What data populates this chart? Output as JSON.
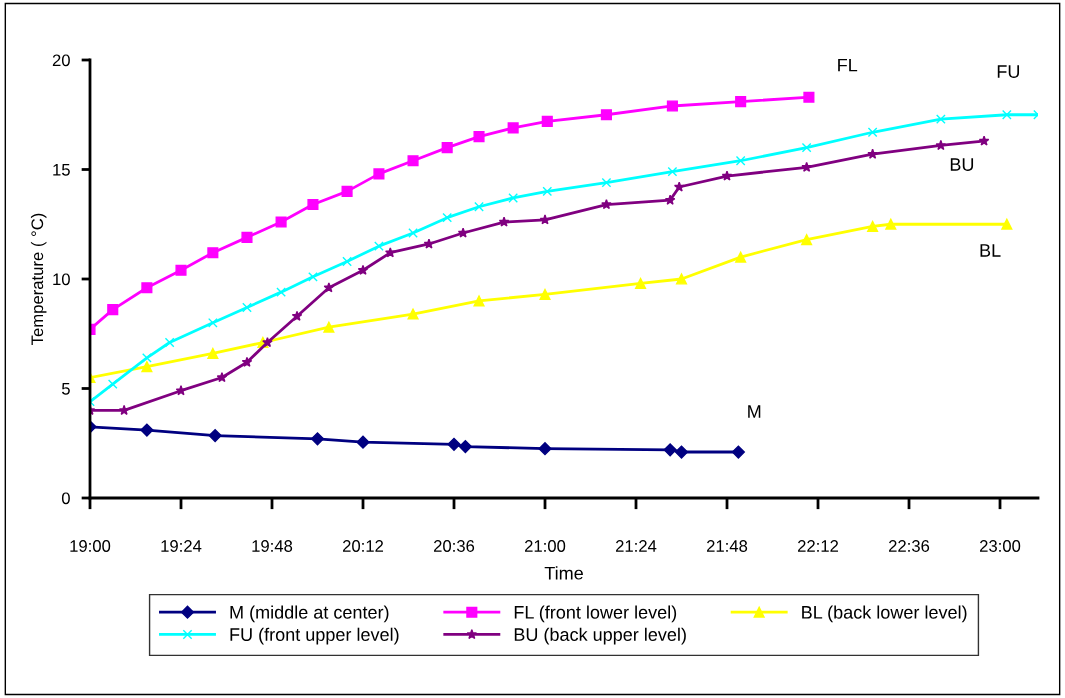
{
  "chart_data": {
    "type": "line",
    "xlabel": "Time",
    "ylabel": "Temperature ( °C)",
    "xlim": [
      19,
      23.167
    ],
    "xticks": [
      {
        "value": 19,
        "label": "19:00"
      },
      {
        "value": 19.4,
        "label": "19:24"
      },
      {
        "value": 19.8,
        "label": "19:48"
      },
      {
        "value": 20.2,
        "label": "20:12"
      },
      {
        "value": 20.6,
        "label": "20:36"
      },
      {
        "value": 21,
        "label": "21:00"
      },
      {
        "value": 21.4,
        "label": "21:24"
      },
      {
        "value": 21.8,
        "label": "21:48"
      },
      {
        "value": 22.2,
        "label": "22:12"
      },
      {
        "value": 22.6,
        "label": "22:36"
      },
      {
        "value": 23,
        "label": "23:00"
      }
    ],
    "ylim": [
      0,
      20
    ],
    "yticks": [
      0,
      5,
      10,
      15,
      20
    ],
    "grid": false,
    "legend": "bottom",
    "line_style": "solid",
    "series": [
      {
        "name": "M (middle at center)",
        "color": "#000080",
        "marker": "diamond",
        "x": [
          19.0,
          19.25,
          19.55,
          20.0,
          20.2,
          20.6,
          20.65,
          21.0,
          21.55,
          21.6,
          21.85
        ],
        "values": [
          3.25,
          3.1,
          2.85,
          2.7,
          2.55,
          2.45,
          2.35,
          2.25,
          2.2,
          2.1,
          2.1
        ]
      },
      {
        "name": "FL (front lower level)",
        "color": "#ff00ff",
        "marker": "square",
        "x": [
          19.0,
          19.1,
          19.25,
          19.4,
          19.54,
          19.69,
          19.84,
          19.98,
          20.13,
          20.27,
          20.42,
          20.57,
          20.71,
          20.86,
          21.01,
          21.27,
          21.56,
          21.86,
          22.16
        ],
        "values": [
          7.7,
          8.6,
          9.6,
          10.4,
          11.2,
          11.9,
          12.6,
          13.4,
          14.0,
          14.8,
          15.4,
          16.0,
          16.5,
          16.9,
          17.2,
          17.5,
          17.9,
          18.1,
          18.3
        ]
      },
      {
        "name": "BL (back lower level)",
        "color": "#ffff00",
        "marker": "triangle",
        "x": [
          19.0,
          19.25,
          19.54,
          19.76,
          20.05,
          20.42,
          20.71,
          21.0,
          21.42,
          21.6,
          21.86,
          22.15,
          22.44,
          22.52,
          23.03
        ],
        "values": [
          5.5,
          6.0,
          6.6,
          7.1,
          7.8,
          8.4,
          9.0,
          9.3,
          9.8,
          10.0,
          11.0,
          11.8,
          12.4,
          12.5,
          12.5
        ]
      },
      {
        "name": "FU (front upper level)",
        "color": "#00ffff",
        "marker": "cross",
        "x": [
          19.0,
          19.1,
          19.25,
          19.35,
          19.54,
          19.69,
          19.84,
          19.98,
          20.13,
          20.27,
          20.42,
          20.57,
          20.71,
          20.86,
          21.01,
          21.27,
          21.56,
          21.86,
          22.15,
          22.44,
          22.74,
          23.03,
          23.167
        ],
        "values": [
          4.4,
          5.2,
          6.4,
          7.1,
          8.0,
          8.7,
          9.4,
          10.1,
          10.8,
          11.5,
          12.1,
          12.8,
          13.3,
          13.7,
          14.0,
          14.4,
          14.9,
          15.4,
          16.0,
          16.7,
          17.3,
          17.5,
          17.5
        ]
      },
      {
        "name": "BU (back upper level)",
        "color": "#800080",
        "marker": "star",
        "x": [
          19.0,
          19.15,
          19.4,
          19.58,
          19.69,
          19.78,
          19.91,
          20.05,
          20.2,
          20.32,
          20.49,
          20.64,
          20.82,
          21.0,
          21.27,
          21.55,
          21.59,
          21.8,
          22.15,
          22.44,
          22.74,
          22.93
        ],
        "values": [
          4.0,
          4.0,
          4.9,
          5.5,
          6.2,
          7.1,
          8.3,
          9.6,
          10.4,
          11.2,
          11.6,
          12.1,
          12.6,
          12.7,
          13.4,
          13.6,
          14.2,
          14.7,
          15.1,
          15.7,
          16.1,
          16.3
        ]
      }
    ],
    "annotations": [
      "M",
      "FL",
      "BL",
      "FU",
      "BU"
    ]
  }
}
